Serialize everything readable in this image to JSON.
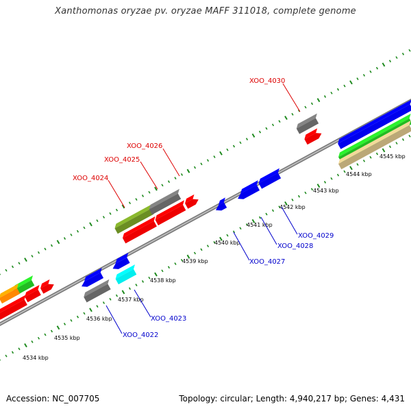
{
  "title": "Xanthomonas oryzae pv. oryzae MAFF 311018, complete genome",
  "footer": {
    "accession": "Accession: NC_007705",
    "summary": "Topology: circular; Length: 4,940,217 bp; Genes: 4,431"
  },
  "colors": {
    "background": "#ffffff",
    "backbone": "#888888",
    "ticks": "#1e8a1e",
    "forward_label": "#dd0000",
    "reverse_label": "#0000cc"
  },
  "kbp_labels": [
    "4534 kbp",
    "4535 kbp",
    "4536 kbp",
    "4537 kbp",
    "4538 kbp",
    "4539 kbp",
    "4540 kbp",
    "4541 kbp",
    "4542 kbp",
    "4543 kbp",
    "4544 kbp",
    "4545 kbp"
  ],
  "gene_labels": {
    "forward": [
      "XOO_4024",
      "XOO_4025",
      "XOO_4026",
      "XOO_4030"
    ],
    "reverse": [
      "XOO_4022",
      "XOO_4023",
      "XOO_4027",
      "XOO_4028",
      "XOO_4029"
    ]
  }
}
